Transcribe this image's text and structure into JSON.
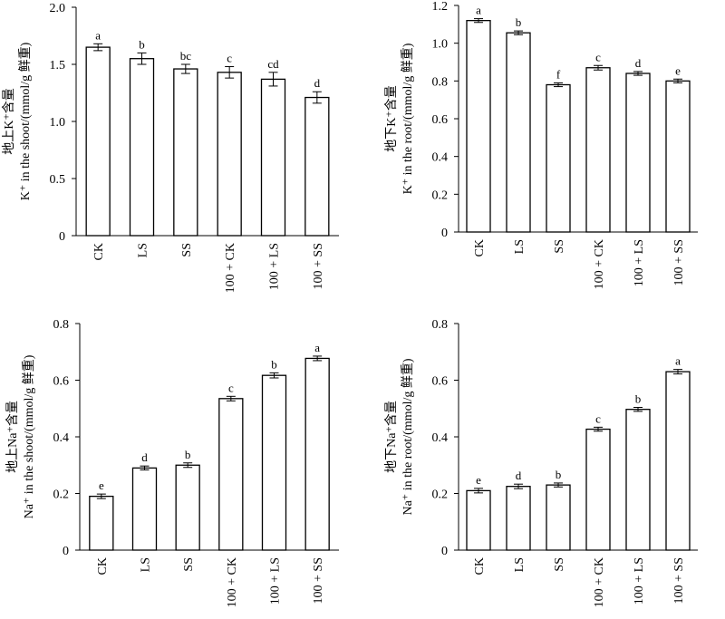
{
  "chart_data": [
    {
      "type": "bar",
      "ylabel_line1": "地上K⁺含量",
      "ylabel_line2": "K⁺ in the shoot/(mmol/g 鲜重)",
      "categories": [
        "CK",
        "LS",
        "SS",
        "100 + CK",
        "100 + LS",
        "100 + SS"
      ],
      "values": [
        1.65,
        1.55,
        1.46,
        1.43,
        1.37,
        1.21
      ],
      "errors": [
        0.03,
        0.05,
        0.04,
        0.05,
        0.06,
        0.05
      ],
      "significance": [
        "a",
        "b",
        "bc",
        "c",
        "cd",
        "d"
      ],
      "ylim": [
        0,
        2.0
      ],
      "yticks": [
        "0",
        "0.5",
        "1.0",
        "1.5",
        "2.0"
      ]
    },
    {
      "type": "bar",
      "ylabel_line1": "地下K⁺含量",
      "ylabel_line2": "K⁺ in the root/(mmol/g 鲜重)",
      "categories": [
        "CK",
        "LS",
        "SS",
        "100 + CK",
        "100 + LS",
        "100 + SS"
      ],
      "values": [
        1.12,
        1.055,
        0.78,
        0.87,
        0.84,
        0.8
      ],
      "errors": [
        0.01,
        0.01,
        0.01,
        0.012,
        0.01,
        0.01
      ],
      "significance": [
        "a",
        "b",
        "f",
        "c",
        "d",
        "e"
      ],
      "ylim": [
        0,
        1.2
      ],
      "yticks": [
        "0",
        "0.2",
        "0.4",
        "0.6",
        "0.8",
        "1.0",
        "1.2"
      ]
    },
    {
      "type": "bar",
      "ylabel_line1": "地上Na⁺含量",
      "ylabel_line2": "Na⁺ in the shoot/(mmol/g 鲜重)",
      "categories": [
        "CK",
        "LS",
        "SS",
        "100 + CK",
        "100 + LS",
        "100 + SS"
      ],
      "values": [
        0.19,
        0.29,
        0.3,
        0.535,
        0.617,
        0.677
      ],
      "errors": [
        0.008,
        0.007,
        0.008,
        0.008,
        0.009,
        0.008
      ],
      "significance": [
        "e",
        "d",
        "b",
        "c",
        "b",
        "a"
      ],
      "ylim": [
        0,
        0.8
      ],
      "yticks": [
        "0",
        "0.2",
        "0.4",
        "0.6",
        "0.8"
      ]
    },
    {
      "type": "bar",
      "ylabel_line1": "地下Na⁺含量",
      "ylabel_line2": "Na⁺ in the root/(mmol/g 鲜重)",
      "categories": [
        "CK",
        "LS",
        "SS",
        "100 + CK",
        "100 + LS",
        "100 + SS"
      ],
      "values": [
        0.21,
        0.225,
        0.23,
        0.427,
        0.497,
        0.63
      ],
      "errors": [
        0.008,
        0.008,
        0.007,
        0.007,
        0.007,
        0.008
      ],
      "significance": [
        "e",
        "d",
        "b",
        "c",
        "b",
        "a"
      ],
      "ylim": [
        0,
        0.8
      ],
      "yticks": [
        "0",
        "0.2",
        "0.4",
        "0.6",
        "0.8"
      ]
    }
  ]
}
